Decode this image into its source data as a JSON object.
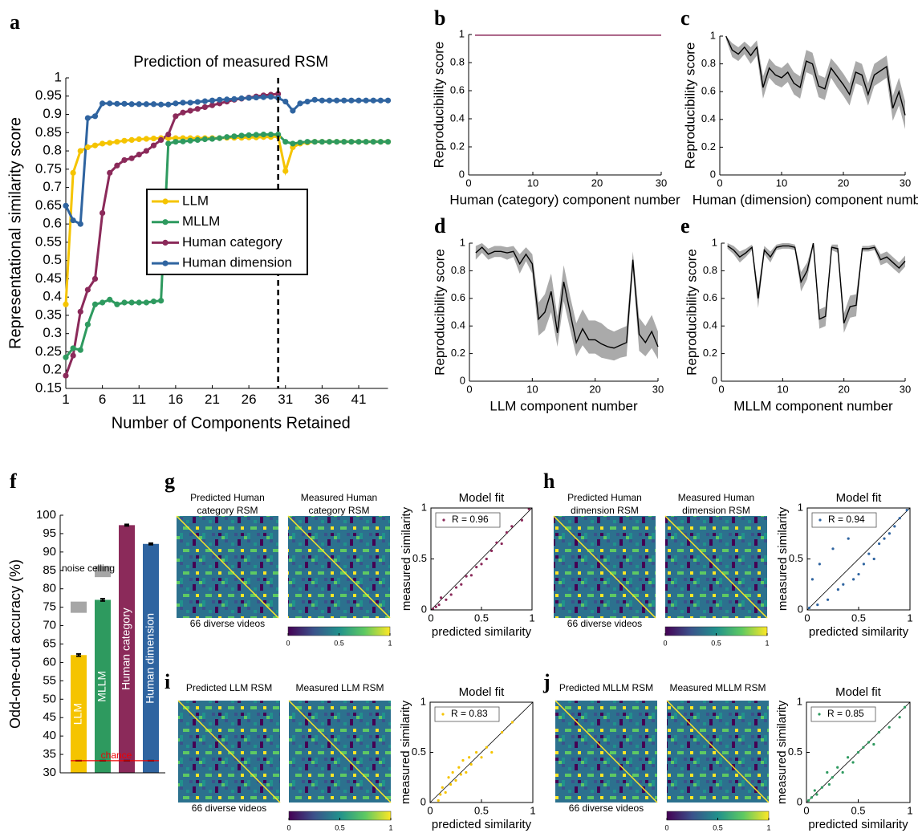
{
  "chart_data": [
    {
      "type": "line",
      "panel": "a",
      "title": "Prediction of measured RSM",
      "xlabel": "Number of Components Retained",
      "ylabel": "Representational similarity score",
      "x": [
        1,
        2,
        3,
        4,
        5,
        6,
        7,
        8,
        9,
        10,
        11,
        12,
        13,
        14,
        15,
        16,
        17,
        18,
        19,
        20,
        21,
        22,
        23,
        24,
        25,
        26,
        27,
        28,
        29,
        30,
        31,
        32,
        33,
        34,
        35,
        36,
        37,
        38,
        39,
        40,
        41,
        42,
        43,
        44,
        45
      ],
      "series": [
        {
          "name": "LLM",
          "color": "#f5c400",
          "values": [
            0.38,
            0.74,
            0.8,
            0.81,
            0.815,
            0.82,
            0.822,
            0.825,
            0.828,
            0.83,
            0.832,
            0.833,
            0.834,
            0.835,
            0.835,
            0.835,
            0.835,
            0.835,
            0.835,
            0.835,
            0.835,
            0.835,
            0.836,
            0.836,
            0.836,
            0.837,
            0.837,
            0.838,
            0.838,
            0.84,
            0.745,
            0.81,
            0.82,
            0.823,
            0.825,
            0.825,
            0.825,
            0.825,
            0.825,
            0.825,
            0.825,
            0.825,
            0.825,
            0.825,
            0.825
          ]
        },
        {
          "name": "MLLM",
          "color": "#2e9a5f",
          "values": [
            0.235,
            0.26,
            0.255,
            0.325,
            0.38,
            0.385,
            0.393,
            0.38,
            0.385,
            0.385,
            0.385,
            0.385,
            0.388,
            0.39,
            0.82,
            0.825,
            0.826,
            0.828,
            0.83,
            0.832,
            0.833,
            0.835,
            0.838,
            0.84,
            0.842,
            0.843,
            0.844,
            0.845,
            0.845,
            0.845,
            0.825,
            0.82,
            0.823,
            0.825,
            0.825,
            0.825,
            0.825,
            0.825,
            0.825,
            0.825,
            0.825,
            0.825,
            0.825,
            0.825,
            0.825
          ]
        },
        {
          "name": "Human category",
          "color": "#8b2a5a",
          "values": [
            0.185,
            0.24,
            0.36,
            0.42,
            0.45,
            0.63,
            0.74,
            0.76,
            0.775,
            0.78,
            0.79,
            0.8,
            0.815,
            0.83,
            0.845,
            0.895,
            0.905,
            0.91,
            0.915,
            0.92,
            0.925,
            0.93,
            0.935,
            0.94,
            0.943,
            0.946,
            0.949,
            0.952,
            0.954,
            0.956,
            null,
            null,
            null,
            null,
            null,
            null,
            null,
            null,
            null,
            null,
            null,
            null,
            null,
            null,
            null
          ]
        },
        {
          "name": "Human dimension",
          "color": "#2f64a0",
          "values": [
            0.65,
            0.61,
            0.6,
            0.89,
            0.895,
            0.93,
            0.93,
            0.929,
            0.929,
            0.928,
            0.928,
            0.928,
            0.928,
            0.927,
            0.927,
            0.93,
            0.932,
            0.932,
            0.934,
            0.936,
            0.938,
            0.94,
            0.941,
            0.942,
            0.944,
            0.945,
            0.946,
            0.947,
            0.948,
            0.945,
            0.935,
            0.91,
            0.93,
            0.935,
            0.94,
            0.938,
            0.938,
            0.938,
            0.938,
            0.938,
            0.938,
            0.938,
            0.938,
            0.938,
            0.938
          ]
        }
      ],
      "vline": 30,
      "xlim": [
        1,
        45
      ],
      "xticks": [
        1,
        6,
        11,
        16,
        21,
        26,
        31,
        36,
        41
      ],
      "ylim": [
        0.15,
        1
      ],
      "yticks": [
        0.15,
        0.2,
        0.25,
        0.3,
        0.35,
        0.4,
        0.45,
        0.5,
        0.55,
        0.6,
        0.65,
        0.7,
        0.75,
        0.8,
        0.85,
        0.9,
        0.95,
        1
      ]
    },
    {
      "type": "band_line",
      "panel": "b",
      "xlabel": "Human (category) component number",
      "ylabel": "Reproducibility score",
      "color": "#8b2a5a",
      "band_color": "#aaaaaa",
      "x": [
        1,
        2,
        3,
        4,
        5,
        6,
        7,
        8,
        9,
        10,
        11,
        12,
        13,
        14,
        15,
        16,
        17,
        18,
        19,
        20,
        21,
        22,
        23,
        24,
        25,
        26,
        27,
        28,
        29,
        30
      ],
      "mean": [
        0.995,
        0.995,
        0.995,
        0.995,
        0.995,
        0.995,
        0.995,
        0.995,
        0.995,
        0.995,
        0.995,
        0.995,
        0.995,
        0.995,
        0.995,
        0.995,
        0.995,
        0.995,
        0.995,
        0.995,
        0.995,
        0.995,
        0.995,
        0.995,
        0.995,
        0.995,
        0.995,
        0.995,
        0.995,
        0.995
      ],
      "xlim": [
        0,
        30
      ],
      "xticks": [
        0,
        10,
        20,
        30
      ],
      "ylim": [
        0,
        1
      ],
      "yticks": [
        0,
        0.2,
        0.4,
        0.6,
        0.8,
        1
      ]
    },
    {
      "type": "band_line",
      "panel": "c",
      "xlabel": "Human (dimension) component number",
      "ylabel": "Reproducibility score",
      "color": "#000000",
      "band_color": "#aaaaaa",
      "x": [
        1,
        2,
        3,
        4,
        5,
        6,
        7,
        8,
        9,
        10,
        11,
        12,
        13,
        14,
        15,
        16,
        17,
        18,
        19,
        20,
        21,
        22,
        23,
        24,
        25,
        26,
        27,
        28,
        29,
        30
      ],
      "mean": [
        1.0,
        0.9,
        0.87,
        0.92,
        0.86,
        0.92,
        0.63,
        0.77,
        0.72,
        0.7,
        0.74,
        0.66,
        0.63,
        0.82,
        0.8,
        0.64,
        0.62,
        0.77,
        0.71,
        0.65,
        0.58,
        0.74,
        0.72,
        0.58,
        0.72,
        0.75,
        0.78,
        0.48,
        0.6,
        0.43
      ],
      "lower": [
        0.98,
        0.85,
        0.82,
        0.87,
        0.8,
        0.86,
        0.55,
        0.7,
        0.65,
        0.63,
        0.67,
        0.58,
        0.55,
        0.74,
        0.72,
        0.56,
        0.54,
        0.7,
        0.63,
        0.57,
        0.5,
        0.66,
        0.64,
        0.5,
        0.64,
        0.67,
        0.7,
        0.39,
        0.5,
        0.33
      ],
      "upper": [
        1.0,
        0.95,
        0.92,
        0.96,
        0.92,
        0.97,
        0.71,
        0.84,
        0.79,
        0.77,
        0.81,
        0.74,
        0.71,
        0.9,
        0.88,
        0.72,
        0.7,
        0.84,
        0.79,
        0.73,
        0.66,
        0.82,
        0.8,
        0.66,
        0.8,
        0.83,
        0.86,
        0.57,
        0.7,
        0.53
      ],
      "xlim": [
        0,
        30
      ],
      "xticks": [
        0,
        10,
        20,
        30
      ],
      "ylim": [
        0,
        1
      ],
      "yticks": [
        0,
        0.2,
        0.4,
        0.6,
        0.8,
        1
      ]
    },
    {
      "type": "band_line",
      "panel": "d",
      "xlabel": "LLM component number",
      "ylabel": "Reproducibility score",
      "color": "#000000",
      "band_color": "#aaaaaa",
      "x": [
        1,
        2,
        3,
        4,
        5,
        6,
        7,
        8,
        9,
        10,
        11,
        12,
        13,
        14,
        15,
        16,
        17,
        18,
        19,
        20,
        21,
        22,
        23,
        24,
        25,
        26,
        27,
        28,
        29,
        30
      ],
      "mean": [
        0.93,
        0.97,
        0.92,
        0.94,
        0.94,
        0.93,
        0.94,
        0.85,
        0.92,
        0.85,
        0.45,
        0.5,
        0.65,
        0.35,
        0.72,
        0.5,
        0.28,
        0.38,
        0.3,
        0.3,
        0.27,
        0.25,
        0.24,
        0.26,
        0.28,
        0.88,
        0.34,
        0.28,
        0.36,
        0.25
      ],
      "lower": [
        0.88,
        0.93,
        0.88,
        0.9,
        0.9,
        0.88,
        0.9,
        0.78,
        0.87,
        0.78,
        0.33,
        0.37,
        0.5,
        0.25,
        0.58,
        0.38,
        0.18,
        0.26,
        0.2,
        0.2,
        0.17,
        0.16,
        0.15,
        0.17,
        0.18,
        0.8,
        0.22,
        0.18,
        0.24,
        0.16
      ],
      "upper": [
        0.98,
        1.0,
        0.96,
        0.98,
        0.98,
        0.97,
        0.98,
        0.92,
        0.97,
        0.92,
        0.57,
        0.63,
        0.78,
        0.47,
        0.84,
        0.62,
        0.42,
        0.52,
        0.44,
        0.44,
        0.42,
        0.38,
        0.36,
        0.38,
        0.4,
        0.94,
        0.46,
        0.4,
        0.48,
        0.36
      ],
      "xlim": [
        0,
        30
      ],
      "xticks": [
        0,
        10,
        20,
        30
      ],
      "ylim": [
        0,
        1
      ],
      "yticks": [
        0,
        0.2,
        0.4,
        0.6,
        0.8,
        1
      ]
    },
    {
      "type": "band_line",
      "panel": "e",
      "xlabel": "MLLM component number",
      "ylabel": "Reproducibility score",
      "color": "#000000",
      "band_color": "#aaaaaa",
      "x": [
        1,
        2,
        3,
        4,
        5,
        6,
        7,
        8,
        9,
        10,
        11,
        12,
        13,
        14,
        15,
        16,
        17,
        18,
        19,
        20,
        21,
        22,
        23,
        24,
        25,
        26,
        27,
        28,
        29,
        30
      ],
      "mean": [
        0.98,
        0.95,
        0.9,
        0.93,
        0.97,
        0.6,
        0.95,
        0.9,
        0.97,
        0.98,
        0.98,
        0.97,
        0.72,
        0.8,
        1.0,
        0.45,
        0.47,
        0.97,
        0.96,
        0.42,
        0.54,
        0.55,
        0.96,
        0.96,
        0.97,
        0.88,
        0.9,
        0.86,
        0.82,
        0.87
      ],
      "lower": [
        0.96,
        0.92,
        0.86,
        0.9,
        0.95,
        0.53,
        0.92,
        0.86,
        0.95,
        0.96,
        0.96,
        0.95,
        0.65,
        0.74,
        0.98,
        0.38,
        0.4,
        0.95,
        0.93,
        0.35,
        0.46,
        0.47,
        0.94,
        0.94,
        0.95,
        0.84,
        0.86,
        0.82,
        0.78,
        0.83
      ],
      "upper": [
        1.0,
        0.98,
        0.94,
        0.96,
        0.99,
        0.67,
        0.98,
        0.94,
        0.99,
        1.0,
        1.0,
        0.99,
        0.79,
        0.86,
        1.0,
        0.52,
        0.54,
        0.99,
        0.99,
        0.49,
        0.62,
        0.63,
        0.98,
        0.98,
        0.99,
        0.92,
        0.94,
        0.9,
        0.86,
        0.91
      ],
      "xlim": [
        0,
        30
      ],
      "xticks": [
        0,
        10,
        20,
        30
      ],
      "ylim": [
        0,
        1
      ],
      "yticks": [
        0,
        0.2,
        0.4,
        0.6,
        0.8,
        1
      ]
    },
    {
      "type": "bar",
      "panel": "f",
      "ylabel": "Odd-one-out accuracy (%)",
      "categories": [
        "LLM",
        "MLLM",
        "Human category",
        "Human dimension"
      ],
      "values": [
        62,
        77,
        97.3,
        92.2
      ],
      "errors": [
        0.3,
        0.3,
        0.2,
        0.2
      ],
      "colors": [
        "#f5c400",
        "#2e9a5f",
        "#8b2a5a",
        "#2f64a0"
      ],
      "noise_ceiling": [
        75,
        84.7,
        null,
        null
      ],
      "noise_ceiling_label": "noise celling",
      "chance": 33.3,
      "chance_label": "chance",
      "ylim": [
        30,
        100
      ],
      "yticks": [
        30,
        35,
        40,
        45,
        50,
        55,
        60,
        65,
        70,
        75,
        80,
        85,
        90,
        95,
        100
      ]
    },
    {
      "type": "rsm",
      "panel": "g",
      "heatmap_titles": [
        [
          "Predicted Human",
          "category RSM"
        ],
        [
          "Measured Human",
          "category RSM"
        ]
      ],
      "heatmap_xlabel": "66 diverse videos",
      "colorbar_lim": [
        0,
        1
      ],
      "colorbar_ticks": [
        0,
        0.5,
        1
      ],
      "scatter": {
        "title": "Model fit",
        "xlabel": "predicted similarity",
        "ylabel": "measured similarity",
        "legend": "R = 0.96",
        "color": "#8b2a5a",
        "x": [
          0.02,
          0.05,
          0.08,
          0.1,
          0.15,
          0.2,
          0.25,
          0.3,
          0.35,
          0.4,
          0.45,
          0.5,
          0.55,
          0.6,
          0.65,
          0.7,
          0.75,
          0.8,
          0.9,
          0.97
        ],
        "y": [
          0.01,
          0.03,
          0.05,
          0.12,
          0.1,
          0.15,
          0.22,
          0.25,
          0.33,
          0.34,
          0.42,
          0.45,
          0.5,
          0.58,
          0.66,
          0.65,
          0.76,
          0.82,
          0.88,
          0.99
        ],
        "xlim": [
          0,
          1
        ],
        "ylim": [
          0,
          1
        ],
        "xticks": [
          0,
          0.5,
          1
        ],
        "yticks": [
          0,
          0.5,
          1
        ]
      }
    },
    {
      "type": "rsm",
      "panel": "h",
      "heatmap_titles": [
        [
          "Predicted Human",
          "dimension RSM"
        ],
        [
          "Measured Human",
          "dimension RSM"
        ]
      ],
      "heatmap_xlabel": "66 diverse videos",
      "colorbar_lim": [
        0,
        1
      ],
      "colorbar_ticks": [
        0,
        0.5,
        1
      ],
      "scatter": {
        "title": "Model fit",
        "xlabel": "predicted similarity",
        "ylabel": "measured similarity",
        "legend": "R = 0.94",
        "color": "#2f64a0",
        "x": [
          0.02,
          0.05,
          0.1,
          0.12,
          0.2,
          0.25,
          0.3,
          0.35,
          0.4,
          0.45,
          0.5,
          0.55,
          0.6,
          0.65,
          0.7,
          0.75,
          0.8,
          0.85,
          0.9,
          0.97
        ],
        "y": [
          0.02,
          0.3,
          0.05,
          0.45,
          0.1,
          0.6,
          0.2,
          0.25,
          0.7,
          0.3,
          0.35,
          0.45,
          0.55,
          0.5,
          0.65,
          0.7,
          0.75,
          0.82,
          0.9,
          0.98
        ],
        "xlim": [
          0,
          1
        ],
        "ylim": [
          0,
          1
        ],
        "xticks": [
          0,
          0.5,
          1
        ],
        "yticks": [
          0,
          0.5,
          1
        ]
      }
    },
    {
      "type": "rsm",
      "panel": "i",
      "heatmap_titles": [
        [
          "Predicted LLM RSM"
        ],
        [
          "Measured LLM RSM"
        ]
      ],
      "heatmap_xlabel": "66 diverse videos",
      "colorbar_lim": [
        0,
        1
      ],
      "colorbar_ticks": [
        0,
        0.5,
        1
      ],
      "scatter": {
        "title": "Model fit",
        "xlabel": "predicted similarity",
        "ylabel": "measured similarity",
        "legend": "R = 0.83",
        "color": "#f5c400",
        "x": [
          0.08,
          0.1,
          0.12,
          0.15,
          0.18,
          0.2,
          0.22,
          0.25,
          0.28,
          0.3,
          0.32,
          0.35,
          0.38,
          0.4,
          0.45,
          0.5,
          0.55,
          0.6,
          0.7,
          0.8
        ],
        "y": [
          0.02,
          0.08,
          0.15,
          0.1,
          0.25,
          0.18,
          0.3,
          0.22,
          0.35,
          0.28,
          0.42,
          0.3,
          0.45,
          0.38,
          0.5,
          0.45,
          0.55,
          0.5,
          0.7,
          0.8
        ],
        "xlim": [
          0,
          1
        ],
        "ylim": [
          0,
          1
        ],
        "xticks": [
          0,
          0.5,
          1
        ],
        "yticks": [
          0,
          0.5,
          1
        ]
      }
    },
    {
      "type": "rsm",
      "panel": "j",
      "heatmap_titles": [
        [
          "Predicted MLLM RSM"
        ],
        [
          "Measured MLLM RSM"
        ]
      ],
      "heatmap_xlabel": "66 diverse videos",
      "colorbar_lim": [
        0,
        1
      ],
      "colorbar_ticks": [
        0,
        0.5,
        1
      ],
      "scatter": {
        "title": "Model fit",
        "xlabel": "predicted similarity",
        "ylabel": "measured similarity",
        "legend": "R = 0.85",
        "color": "#2e9a5f",
        "x": [
          0.02,
          0.05,
          0.08,
          0.1,
          0.15,
          0.2,
          0.22,
          0.25,
          0.3,
          0.35,
          0.4,
          0.45,
          0.5,
          0.55,
          0.6,
          0.65,
          0.7,
          0.8,
          0.9,
          0.95
        ],
        "y": [
          0.02,
          0.05,
          0.12,
          0.08,
          0.15,
          0.3,
          0.18,
          0.25,
          0.35,
          0.3,
          0.45,
          0.4,
          0.5,
          0.55,
          0.6,
          0.58,
          0.7,
          0.75,
          0.85,
          0.95
        ],
        "xlim": [
          0,
          1
        ],
        "ylim": [
          0,
          1
        ],
        "xticks": [
          0,
          0.5,
          1
        ],
        "yticks": [
          0,
          0.5,
          1
        ]
      }
    }
  ]
}
